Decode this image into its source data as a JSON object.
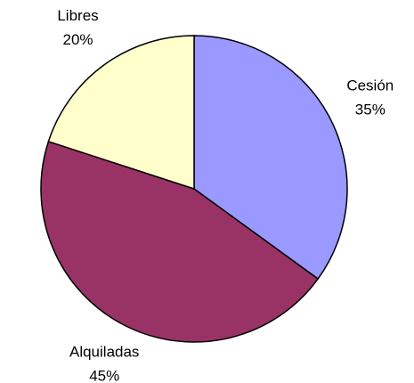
{
  "chart_data": {
    "type": "pie",
    "categories": [
      "Cesión",
      "Alquiladas",
      "Libres"
    ],
    "values": [
      35,
      45,
      20
    ],
    "value_labels": [
      "35%",
      "45%",
      "20%"
    ],
    "colors": [
      "#9999ff",
      "#993366",
      "#ffffcc"
    ]
  }
}
